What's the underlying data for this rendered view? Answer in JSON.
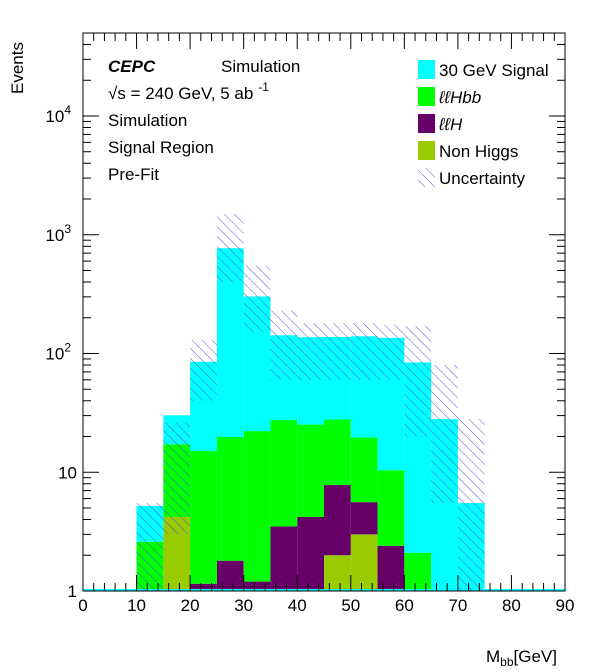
{
  "chart_data": {
    "type": "bar",
    "stacked": true,
    "log_y": true,
    "xlabel": "M",
    "xlabel_sub": "bb",
    "xlabel_unit": "[GeV]",
    "ylabel": "Events",
    "xlim": [
      0,
      90
    ],
    "ylim": [
      1,
      50000
    ],
    "x_ticks": [
      "0",
      "10",
      "20",
      "30",
      "40",
      "50",
      "60",
      "70",
      "80",
      "90"
    ],
    "y_ticks": [
      {
        "value": 1,
        "label": "1"
      },
      {
        "value": 10,
        "label": "10"
      },
      {
        "value": 100,
        "label": "10",
        "exp": "2"
      },
      {
        "value": 1000,
        "label": "10",
        "exp": "3"
      },
      {
        "value": 10000,
        "label": "10",
        "exp": "4"
      }
    ],
    "bin_edges": [
      0,
      5,
      10,
      15,
      20,
      25,
      30,
      35,
      40,
      45,
      50,
      55,
      60,
      65,
      70,
      75,
      80,
      85,
      90
    ],
    "series": [
      {
        "name": "Non Higgs",
        "color": "#99cc00",
        "values": [
          0,
          0,
          0,
          4.2,
          0,
          0,
          0,
          0,
          0,
          2.0,
          3.0,
          0,
          0,
          0,
          0,
          0,
          0,
          0
        ]
      },
      {
        "name": "ℓℓH",
        "color": "#660066",
        "values": [
          0,
          0,
          0,
          0,
          1.15,
          1.8,
          1.2,
          3.5,
          4.2,
          5.8,
          2.6,
          2.4,
          0,
          0,
          0,
          0,
          0,
          0
        ]
      },
      {
        "name": "ℓℓHbb",
        "color": "#00ff00",
        "values": [
          0,
          0,
          2.6,
          13.0,
          14.0,
          18.0,
          21.0,
          24.0,
          21.0,
          20.0,
          14.0,
          8.0,
          2.1,
          0,
          0,
          0,
          0,
          0
        ]
      },
      {
        "name": "30 GeV Signal",
        "color": "#00ffff",
        "values": [
          0,
          0,
          2.6,
          13.0,
          70.0,
          750.0,
          280.0,
          115.0,
          112.0,
          110.0,
          120.0,
          125.0,
          82.0,
          28.0,
          5.5,
          0,
          0,
          0
        ]
      }
    ],
    "uncertainty": {
      "name": "Uncertainty",
      "upper": [
        0,
        0,
        5.5,
        26.0,
        130.0,
        1500.0,
        550.0,
        230.0,
        180.0,
        180.0,
        180.0,
        175.0,
        170.0,
        80.0,
        28.0,
        0,
        0,
        0
      ],
      "lower": [
        0,
        0,
        1.0,
        3.0,
        40.0,
        400.0,
        150.0,
        60.0,
        60.0,
        60.0,
        60.0,
        60.0,
        20.0,
        5.5,
        1.0,
        0,
        0,
        0
      ]
    },
    "annotations": {
      "experiment": "CEPC",
      "sim_label": "Simulation",
      "energy_sqrt": "√",
      "energy": "s = 240 GeV, 5 ab",
      "energy_exp": "-1",
      "line3": "Simulation",
      "line4": "Signal Region",
      "line5": "Pre-Fit"
    },
    "legend_position": "top-right",
    "legend": [
      {
        "label": "30 GeV Signal",
        "color": "#00ffff",
        "kind": "fill"
      },
      {
        "label": "ℓℓHbb",
        "color": "#00ff00",
        "kind": "fill"
      },
      {
        "label": "ℓℓH",
        "color": "#660066",
        "kind": "fill"
      },
      {
        "label": "Non Higgs",
        "color": "#99cc00",
        "kind": "fill"
      },
      {
        "label": "Uncertainty",
        "color": "#6666ff",
        "kind": "hatch"
      }
    ]
  }
}
